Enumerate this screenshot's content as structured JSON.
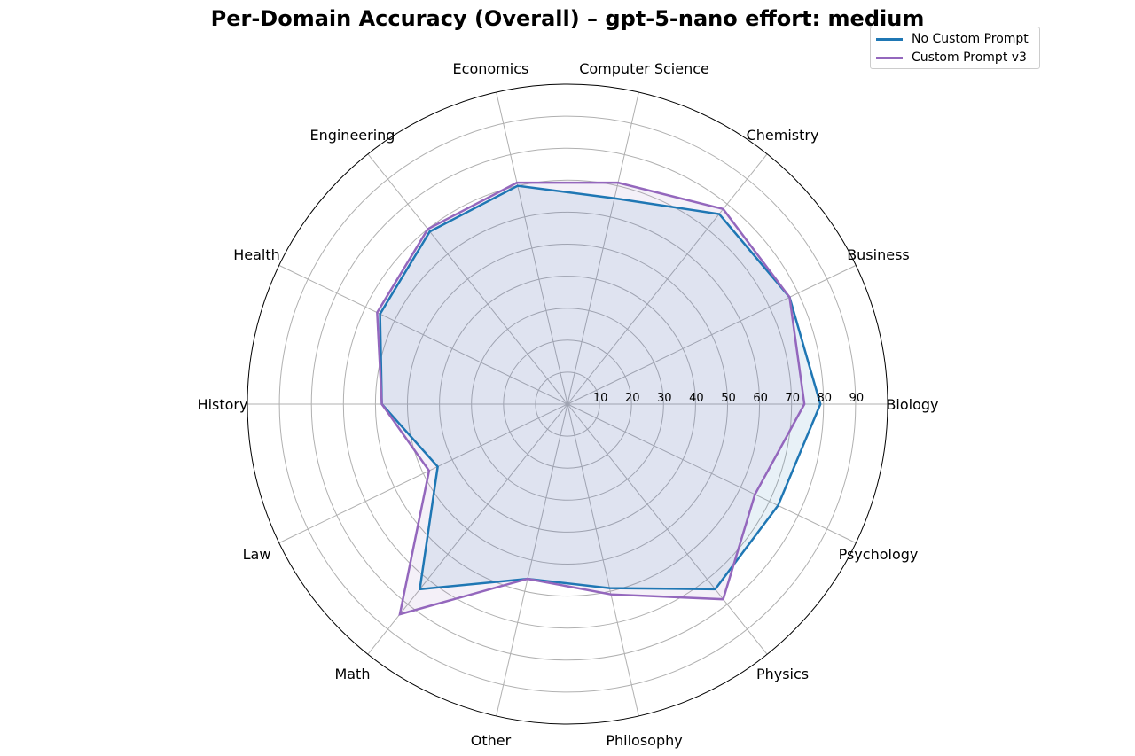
{
  "chart_data": {
    "type": "radar",
    "title": "Per-Domain Accuracy (Overall) – gpt-5-nano effort: medium",
    "categories": [
      "Biology",
      "Business",
      "Chemistry",
      "Computer Science",
      "Economics",
      "Engineering",
      "Health",
      "History",
      "Law",
      "Math",
      "Other",
      "Philosophy",
      "Physics",
      "Psychology"
    ],
    "r_ticks": [
      10,
      20,
      30,
      40,
      50,
      60,
      70,
      80,
      90
    ],
    "r_max": 100,
    "grid": true,
    "legend_position": "top-right",
    "series": [
      {
        "name": "No Custom Prompt",
        "color": "#1f77b4",
        "values": [
          79,
          77,
          76,
          66,
          70,
          69,
          65,
          58,
          45,
          74,
          56,
          59,
          74,
          73
        ]
      },
      {
        "name": "Custom Prompt v3",
        "color": "#9467bd",
        "values": [
          74,
          77,
          78,
          71,
          71,
          70,
          66,
          58,
          48,
          84,
          56,
          61,
          78,
          65
        ]
      }
    ]
  },
  "legend": {
    "items": [
      {
        "label": "No Custom Prompt",
        "color": "#1f77b4"
      },
      {
        "label": "Custom Prompt v3",
        "color": "#9467bd"
      }
    ]
  }
}
